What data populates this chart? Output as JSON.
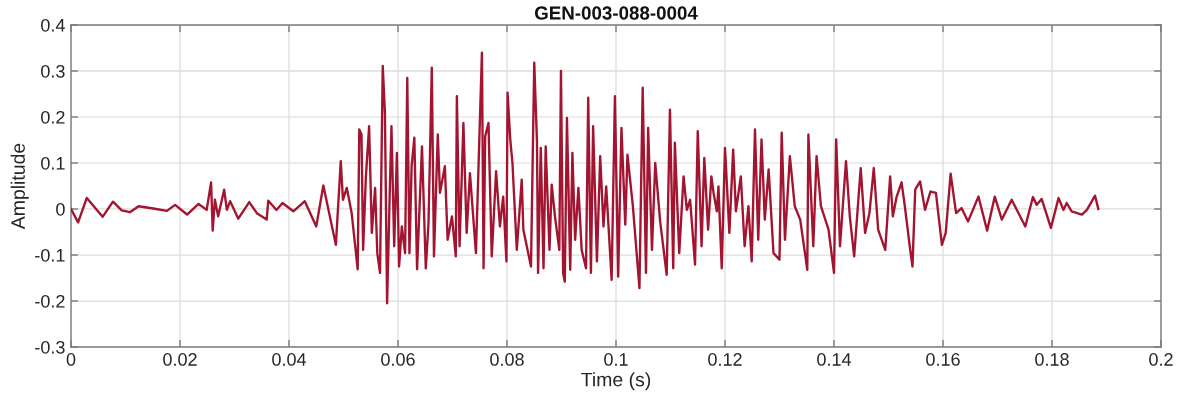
{
  "chart_data": {
    "type": "line",
    "title": "GEN-003-088-0004",
    "xlabel": "Time (s)",
    "ylabel": "Amplitude",
    "x": [
      0,
      0.0013,
      0.0029,
      0.0058,
      0.0077,
      0.0093,
      0.0108,
      0.0124,
      0.0151,
      0.0176,
      0.0191,
      0.0213,
      0.0234,
      0.0249,
      0.0257,
      0.026,
      0.0264,
      0.027,
      0.0281,
      0.0286,
      0.0292,
      0.0307,
      0.0327,
      0.0341,
      0.0359,
      0.0362,
      0.0377,
      0.0388,
      0.0408,
      0.0429,
      0.045,
      0.0463,
      0.0486,
      0.0495,
      0.0499,
      0.0506,
      0.0515,
      0.0526,
      0.0529,
      0.0533,
      0.0536,
      0.0541,
      0.0547,
      0.0552,
      0.0558,
      0.0562,
      0.0567,
      0.0572,
      0.0576,
      0.058,
      0.0585,
      0.0588,
      0.0593,
      0.0598,
      0.0602,
      0.0607,
      0.0613,
      0.0617,
      0.0621,
      0.0625,
      0.063,
      0.0635,
      0.0644,
      0.0651,
      0.0656,
      0.0662,
      0.0666,
      0.0673,
      0.0677,
      0.0686,
      0.0691,
      0.0699,
      0.0706,
      0.0708,
      0.0713,
      0.072,
      0.0726,
      0.0732,
      0.0743,
      0.0754,
      0.0757,
      0.076,
      0.0766,
      0.0772,
      0.078,
      0.0787,
      0.0793,
      0.0799,
      0.0801,
      0.0806,
      0.081,
      0.0818,
      0.0827,
      0.083,
      0.0844,
      0.085,
      0.0855,
      0.0857,
      0.0862,
      0.0867,
      0.0871,
      0.0878,
      0.0882,
      0.0888,
      0.0896,
      0.0899,
      0.0903,
      0.0906,
      0.091,
      0.0916,
      0.092,
      0.0925,
      0.0931,
      0.0937,
      0.0945,
      0.0949,
      0.0954,
      0.0958,
      0.0965,
      0.0971,
      0.0977,
      0.0982,
      0.0992,
      0.0998,
      0.1004,
      0.101,
      0.1017,
      0.1021,
      0.1031,
      0.1043,
      0.1049,
      0.1055,
      0.1059,
      0.1066,
      0.1072,
      0.1081,
      0.1093,
      0.1099,
      0.1105,
      0.1108,
      0.1116,
      0.1124,
      0.113,
      0.1136,
      0.1145,
      0.115,
      0.1157,
      0.1162,
      0.1169,
      0.1175,
      0.1179,
      0.1185,
      0.1188,
      0.1194,
      0.12,
      0.1208,
      0.1215,
      0.122,
      0.1229,
      0.1236,
      0.1243,
      0.1249,
      0.1255,
      0.1261,
      0.1267,
      0.1273,
      0.128,
      0.1289,
      0.13,
      0.1304,
      0.131,
      0.1319,
      0.1328,
      0.1338,
      0.1351,
      0.1353,
      0.1362,
      0.1368,
      0.1376,
      0.139,
      0.14,
      0.1404,
      0.1411,
      0.1422,
      0.1429,
      0.1437,
      0.1449,
      0.1457,
      0.1465,
      0.1473,
      0.1481,
      0.1494,
      0.1503,
      0.1508,
      0.1515,
      0.1524,
      0.153,
      0.1539,
      0.1544,
      0.1549,
      0.1558,
      0.1567,
      0.1577,
      0.1587,
      0.1598,
      0.1605,
      0.1614,
      0.1624,
      0.1634,
      0.1646,
      0.1665,
      0.1681,
      0.1695,
      0.1708,
      0.1726,
      0.1751,
      0.1765,
      0.1772,
      0.1781,
      0.1798,
      0.1812,
      0.1821,
      0.1827,
      0.1836,
      0.1855,
      0.1864,
      0.1879,
      0.1885
    ],
    "series": [
      {
        "color": "#a2142f",
        "values": [
          0,
          -0.029,
          0.024,
          -0.017,
          0.016,
          -0.003,
          -0.007,
          0.006,
          0.001,
          -0.004,
          0.009,
          -0.012,
          0.011,
          -0.002,
          0.058,
          -0.047,
          0.02,
          -0.016,
          0.042,
          -0.002,
          0.017,
          -0.021,
          0.015,
          -0.009,
          -0.023,
          0.018,
          -0.002,
          0.013,
          -0.005,
          0.017,
          -0.038,
          0.051,
          -0.078,
          0.104,
          0.02,
          0.046,
          -0.009,
          -0.131,
          0.173,
          0.162,
          -0.089,
          0.068,
          0.18,
          -0.052,
          0.046,
          -0.096,
          -0.139,
          0.311,
          0.209,
          -0.205,
          0.042,
          0.18,
          -0.081,
          0.122,
          -0.125,
          -0.038,
          -0.096,
          0.285,
          -0.096,
          0.093,
          0.155,
          -0.131,
          0.136,
          -0.129,
          -0.031,
          0.307,
          -0.103,
          0.162,
          0.035,
          0.093,
          -0.067,
          -0.016,
          -0.103,
          0.245,
          -0.081,
          0.187,
          -0.052,
          0.078,
          -0.096,
          0.34,
          -0.129,
          0.158,
          0.187,
          -0.103,
          0.082,
          -0.038,
          0.027,
          -0.114,
          0.253,
          0.151,
          0.1,
          -0.089,
          0.064,
          -0.045,
          -0.125,
          0.318,
          0.147,
          -0.139,
          0.133,
          -0.129,
          0.136,
          -0.089,
          0.053,
          -0.016,
          -0.089,
          0.3,
          -0.139,
          -0.158,
          0.198,
          -0.132,
          0.122,
          -0.067,
          0.046,
          -0.089,
          -0.129,
          0.242,
          -0.139,
          0.18,
          -0.114,
          0.115,
          -0.038,
          0.049,
          -0.154,
          0.245,
          -0.147,
          0.176,
          -0.034,
          0.118,
          0.006,
          -0.172,
          0.264,
          -0.139,
          0.176,
          -0.089,
          0.1,
          -0.027,
          -0.143,
          0.216,
          -0.129,
          0.144,
          -0.096,
          0.071,
          -0.002,
          0.02,
          -0.121,
          0.169,
          -0.081,
          0.111,
          -0.045,
          0.071,
          0.035,
          -0.005,
          0.049,
          -0.129,
          0.133,
          -0.052,
          0.129,
          -0.005,
          0.071,
          -0.081,
          0.006,
          -0.114,
          0.173,
          -0.067,
          0.151,
          -0.023,
          0.086,
          -0.096,
          -0.11,
          0.166,
          -0.067,
          0.115,
          0.006,
          -0.023,
          -0.132,
          0.162,
          -0.081,
          0.115,
          0.006,
          -0.045,
          -0.139,
          0.151,
          -0.081,
          0.104,
          -0.016,
          -0.103,
          0.089,
          -0.052,
          -0.009,
          0.089,
          -0.045,
          -0.089,
          0.071,
          -0.016,
          0.027,
          0.058,
          0.006,
          -0.081,
          -0.125,
          0.042,
          0.06,
          -0.002,
          0.038,
          0.035,
          -0.078,
          -0.052,
          0.077,
          -0.009,
          0.002,
          -0.027,
          0.027,
          -0.047,
          0.027,
          -0.023,
          0.02,
          -0.038,
          0.026,
          0.009,
          0.022,
          -0.041,
          0.024,
          -0.002,
          0.013,
          -0.005,
          -0.012,
          -0.002,
          0.029,
          0
        ]
      }
    ],
    "xlim": [
      0,
      0.2
    ],
    "ylim": [
      -0.3,
      0.4
    ],
    "xticks": [
      0,
      0.02,
      0.04,
      0.06,
      0.08,
      0.1,
      0.12,
      0.14,
      0.16,
      0.18,
      0.2
    ],
    "yticks": [
      -0.3,
      -0.2,
      -0.1,
      0,
      0.1,
      0.2,
      0.3,
      0.4
    ],
    "grid": true,
    "line_style": "solid"
  }
}
